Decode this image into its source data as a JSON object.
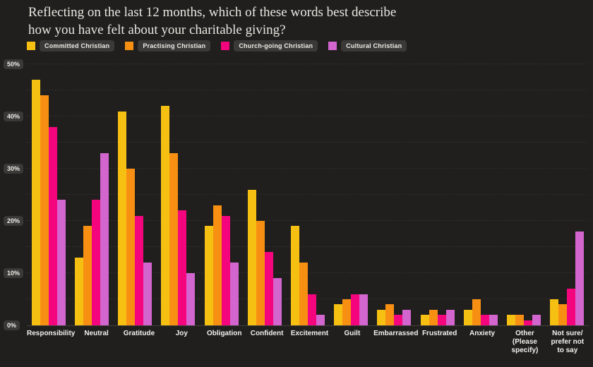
{
  "header": {
    "title_line1": "Reflecting on the last 12 months, which of these words best describe",
    "title_line2": "how you have felt about your charitable giving?"
  },
  "theme": {
    "background": "#201F1D",
    "chip_background": "#3B3937",
    "text_color": "#EDECE7",
    "gridline_color": "#45423D"
  },
  "chart_data": {
    "type": "bar",
    "title": "Reflecting on the last 12 months, which of these words best describe how you have felt about your charitable giving?",
    "xlabel": "",
    "ylabel": "",
    "ylim": [
      0,
      50
    ],
    "grid": "dotted horizontal every 5%",
    "legend_position": "top-left",
    "y_ticks": [
      {
        "label": "50%",
        "value": 50
      },
      {
        "label": "40%",
        "value": 40
      },
      {
        "label": "30%",
        "value": 30
      },
      {
        "label": "20%",
        "value": 20
      },
      {
        "label": "10%",
        "value": 10
      },
      {
        "label": "0%",
        "value": 0
      }
    ],
    "categories": [
      "Responsibility",
      "Neutral",
      "Gratitude",
      "Joy",
      "Obligation",
      "Confident",
      "Excitement",
      "Guilt",
      "Embarrassed",
      "Frustrated",
      "Anxiety",
      "Other\n(Please\nspecify)",
      "Not sure/\nprefer not\nto say"
    ],
    "series": [
      {
        "name": "Committed Christian",
        "color": "#F6C013",
        "values": [
          47,
          13,
          41,
          42,
          19,
          26,
          19,
          4,
          3,
          2,
          3,
          2,
          5
        ]
      },
      {
        "name": "Practising Christian",
        "color": "#F78F13",
        "values": [
          44,
          19,
          30,
          33,
          23,
          20,
          12,
          5,
          4,
          3,
          5,
          2,
          4
        ]
      },
      {
        "name": "Church-going Christian",
        "color": "#F5057D",
        "values": [
          38,
          24,
          21,
          22,
          21,
          14,
          6,
          6,
          2,
          2,
          2,
          1,
          7
        ]
      },
      {
        "name": "Cultural Christian",
        "color": "#D365CE",
        "values": [
          24,
          33,
          12,
          10,
          12,
          9,
          2,
          6,
          3,
          3,
          2,
          2,
          18
        ]
      }
    ]
  }
}
